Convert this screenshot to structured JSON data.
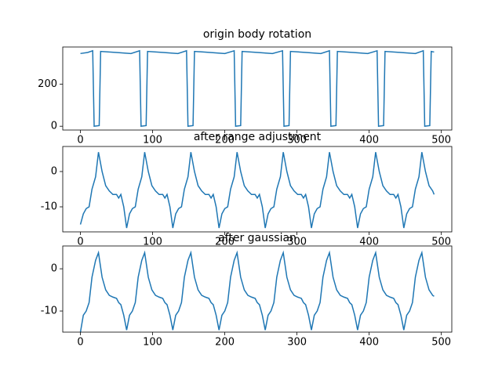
{
  "chart_data": [
    {
      "type": "line",
      "title": "origin body rotation",
      "color": "#1f77b4",
      "x": [
        0,
        10,
        17,
        19,
        26,
        28,
        50,
        70,
        82,
        84,
        91,
        93,
        115,
        135,
        147,
        149,
        156,
        158,
        180,
        200,
        213,
        215,
        222,
        224,
        246,
        266,
        280,
        282,
        289,
        291,
        313,
        333,
        345,
        347,
        354,
        356,
        378,
        398,
        411,
        413,
        420,
        422,
        444,
        464,
        475,
        477,
        484,
        486,
        490
      ],
      "values": [
        345,
        350,
        358,
        0,
        3,
        355,
        350,
        345,
        358,
        0,
        3,
        355,
        350,
        345,
        358,
        0,
        3,
        355,
        350,
        345,
        358,
        0,
        3,
        355,
        350,
        345,
        358,
        0,
        3,
        355,
        350,
        345,
        358,
        0,
        3,
        355,
        350,
        345,
        358,
        0,
        3,
        355,
        350,
        345,
        358,
        0,
        3,
        355,
        352
      ],
      "xlim": [
        -24.5,
        514.5
      ],
      "ylim": [
        -17.9,
        375.9
      ],
      "xticks": [
        0,
        100,
        200,
        300,
        400,
        500
      ],
      "yticks": [
        0,
        200
      ]
    },
    {
      "type": "line",
      "title": "after range adjustment",
      "color": "#1f77b4",
      "x": [
        0,
        4,
        8,
        12,
        16,
        21,
        25,
        30,
        35,
        40,
        45,
        50,
        53,
        56,
        60,
        64,
        68,
        72,
        76,
        80,
        85,
        89,
        94,
        99,
        104,
        109,
        114,
        117,
        120,
        124,
        128,
        132,
        136,
        140,
        144,
        149,
        153,
        158,
        163,
        168,
        173,
        178,
        181,
        184,
        188,
        192,
        196,
        200,
        204,
        208,
        213,
        217,
        222,
        227,
        232,
        237,
        242,
        245,
        248,
        252,
        256,
        260,
        264,
        268,
        272,
        277,
        281,
        286,
        291,
        296,
        301,
        306,
        309,
        312,
        316,
        320,
        324,
        328,
        332,
        336,
        341,
        345,
        350,
        355,
        360,
        365,
        370,
        373,
        376,
        380,
        384,
        388,
        392,
        396,
        400,
        405,
        409,
        414,
        419,
        424,
        429,
        434,
        437,
        440,
        444,
        448,
        452,
        456,
        460,
        464,
        469,
        473,
        478,
        483,
        488,
        490
      ],
      "values": [
        -15,
        -12,
        -10.5,
        -10,
        -5,
        -1.5,
        5.5,
        0,
        -4,
        -5.5,
        -6.5,
        -6.5,
        -7.5,
        -6.5,
        -10,
        -16,
        -12,
        -10.5,
        -10,
        -5,
        -1.5,
        5.5,
        0,
        -4,
        -5.5,
        -6.5,
        -6.5,
        -7.5,
        -6.5,
        -10,
        -16,
        -12,
        -10.5,
        -10,
        -5,
        -1.5,
        5.5,
        0,
        -4,
        -5.5,
        -6.5,
        -6.5,
        -7.5,
        -6.5,
        -10,
        -16,
        -12,
        -10.5,
        -10,
        -5,
        -1.5,
        5.5,
        0,
        -4,
        -5.5,
        -6.5,
        -6.5,
        -7.5,
        -6.5,
        -10,
        -16,
        -12,
        -10.5,
        -10,
        -5,
        -1.5,
        5.5,
        0,
        -4,
        -5.5,
        -6.5,
        -6.5,
        -7.5,
        -6.5,
        -10,
        -16,
        -12,
        -10.5,
        -10,
        -5,
        -1.5,
        5.5,
        0,
        -4,
        -5.5,
        -6.5,
        -6.5,
        -7.5,
        -6.5,
        -10,
        -16,
        -12,
        -10.5,
        -10,
        -5,
        -1.5,
        5.5,
        0,
        -4,
        -5.5,
        -6.5,
        -6.5,
        -7.5,
        -6.5,
        -10,
        -16,
        -12,
        -10.5,
        -10,
        -5,
        -1.5,
        5.5,
        0,
        -4,
        -5.5,
        -6.5
      ],
      "xlim": [
        -24.5,
        514.5
      ],
      "ylim": [
        -17.1,
        7.1
      ],
      "xticks": [
        0,
        100,
        200,
        300,
        400,
        500
      ],
      "yticks": [
        -10,
        0
      ]
    },
    {
      "type": "line",
      "title": "after gaussian",
      "color": "#1f77b4",
      "x": [
        0,
        4,
        8,
        12,
        16,
        21,
        25,
        30,
        35,
        40,
        45,
        50,
        53,
        56,
        60,
        64,
        68,
        72,
        76,
        80,
        85,
        89,
        94,
        99,
        104,
        109,
        114,
        117,
        120,
        124,
        128,
        132,
        136,
        140,
        144,
        149,
        153,
        158,
        163,
        168,
        173,
        178,
        181,
        184,
        188,
        192,
        196,
        200,
        204,
        208,
        213,
        217,
        222,
        227,
        232,
        237,
        242,
        245,
        248,
        252,
        256,
        260,
        264,
        268,
        272,
        277,
        281,
        286,
        291,
        296,
        301,
        306,
        309,
        312,
        316,
        320,
        324,
        328,
        332,
        336,
        341,
        345,
        350,
        355,
        360,
        365,
        370,
        373,
        376,
        380,
        384,
        388,
        392,
        396,
        400,
        405,
        409,
        414,
        419,
        424,
        429,
        434,
        437,
        440,
        444,
        448,
        452,
        456,
        460,
        464,
        469,
        473,
        478,
        483,
        488,
        490
      ],
      "values": [
        -15,
        -11,
        -10,
        -8,
        -2,
        2,
        3.8,
        -2,
        -5,
        -6.3,
        -6.7,
        -7,
        -8,
        -8.5,
        -11,
        -14.5,
        -11,
        -10,
        -8,
        -2,
        2,
        3.8,
        -2,
        -5,
        -6.3,
        -6.7,
        -7,
        -8,
        -8.5,
        -11,
        -14.5,
        -11,
        -10,
        -8,
        -2,
        2,
        3.8,
        -2,
        -5,
        -6.3,
        -6.7,
        -7,
        -8,
        -8.5,
        -11,
        -14.5,
        -11,
        -10,
        -8,
        -2,
        2,
        3.8,
        -2,
        -5,
        -6.3,
        -6.7,
        -7,
        -8,
        -8.5,
        -11,
        -14.5,
        -11,
        -10,
        -8,
        -2,
        2,
        3.8,
        -2,
        -5,
        -6.3,
        -6.7,
        -7,
        -8,
        -8.5,
        -11,
        -14.5,
        -11,
        -10,
        -8,
        -2,
        2,
        3.8,
        -2,
        -5,
        -6.3,
        -6.7,
        -7,
        -8,
        -8.5,
        -11,
        -14.5,
        -11,
        -10,
        -8,
        -2,
        2,
        3.8,
        -2,
        -5,
        -6.3,
        -6.7,
        -7,
        -8,
        -8.5,
        -11,
        -14.5,
        -11,
        -10,
        -8,
        -2,
        2,
        3.8,
        -2,
        -5,
        -6.3,
        -6.5
      ],
      "xlim": [
        -24.5,
        514.5
      ],
      "ylim": [
        -15.0,
        5.4
      ],
      "xticks": [
        0,
        100,
        200,
        300,
        400,
        500
      ],
      "yticks": [
        -10,
        0
      ]
    }
  ]
}
